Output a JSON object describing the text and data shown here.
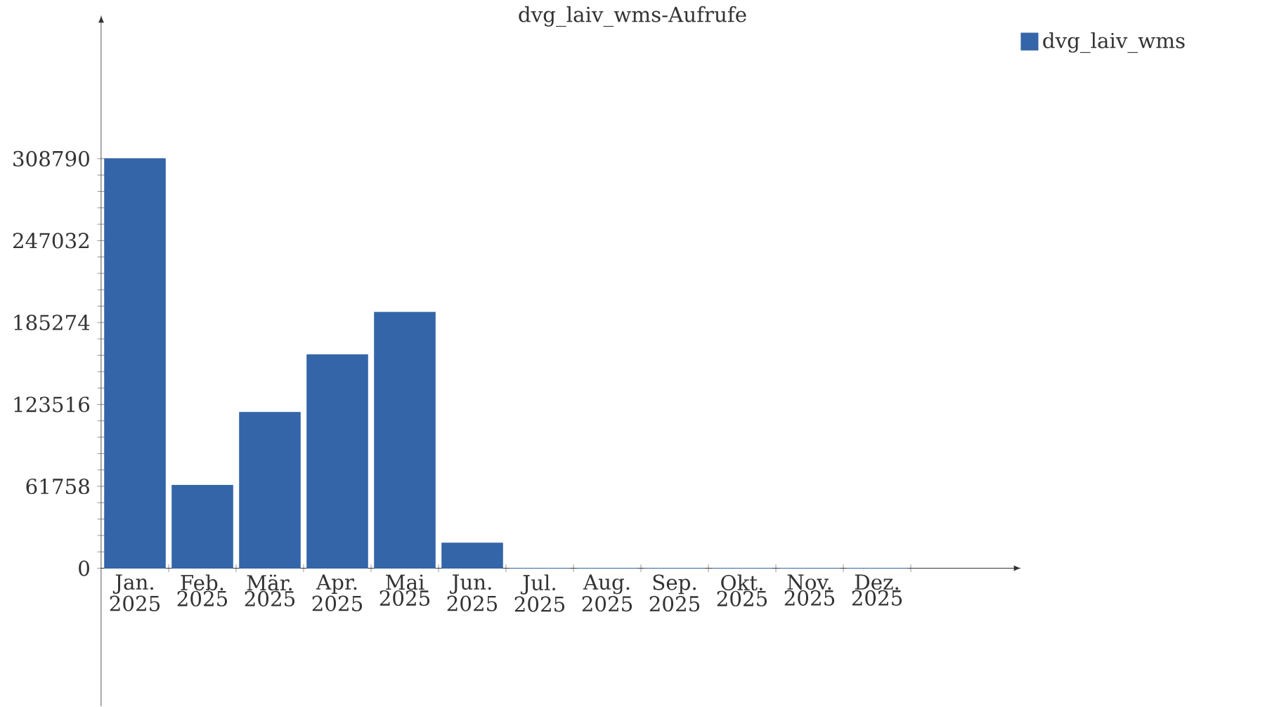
{
  "chart_data": {
    "type": "bar",
    "title": "dvg_laiv_wms-Aufrufe",
    "categories": [
      "Jan. 2025",
      "Feb. 2025",
      "Mär. 2025",
      "Apr. 2025",
      "Mai 2025",
      "Jun. 2025",
      "Jul. 2025",
      "Aug. 2025",
      "Sep. 2025",
      "Okt. 2025",
      "Nov. 2025",
      "Dez. 2025"
    ],
    "series": [
      {
        "name": "dvg_laiv_wms",
        "color": "#3465a8",
        "values": [
          308790,
          62500,
          117500,
          161000,
          193000,
          19000,
          0,
          0,
          0,
          0,
          0,
          0
        ]
      }
    ],
    "ylim": [
      -104000,
      410000
    ],
    "yticks": [
      0,
      61758,
      123516,
      185274,
      247032,
      308790
    ],
    "grid": false,
    "legend": "top right"
  }
}
